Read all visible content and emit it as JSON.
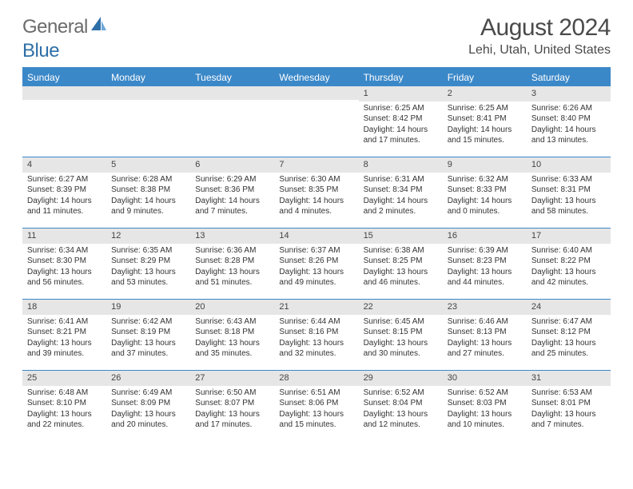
{
  "logo": {
    "word1": "General",
    "word2": "Blue",
    "word1_color": "#6b6b6b",
    "word2_color": "#2f6fa8"
  },
  "title": "August 2024",
  "location": "Lehi, Utah, United States",
  "colors": {
    "header_bg": "#3b88c8",
    "header_text": "#ffffff",
    "daynum_bg": "#e6e6e6",
    "border": "#3b88c8",
    "body_text": "#333333"
  },
  "weekdays": [
    "Sunday",
    "Monday",
    "Tuesday",
    "Wednesday",
    "Thursday",
    "Friday",
    "Saturday"
  ],
  "weeks": [
    [
      null,
      null,
      null,
      null,
      {
        "n": "1",
        "sr": "6:25 AM",
        "ss": "8:42 PM",
        "dl": "14 hours and 17 minutes."
      },
      {
        "n": "2",
        "sr": "6:25 AM",
        "ss": "8:41 PM",
        "dl": "14 hours and 15 minutes."
      },
      {
        "n": "3",
        "sr": "6:26 AM",
        "ss": "8:40 PM",
        "dl": "14 hours and 13 minutes."
      }
    ],
    [
      {
        "n": "4",
        "sr": "6:27 AM",
        "ss": "8:39 PM",
        "dl": "14 hours and 11 minutes."
      },
      {
        "n": "5",
        "sr": "6:28 AM",
        "ss": "8:38 PM",
        "dl": "14 hours and 9 minutes."
      },
      {
        "n": "6",
        "sr": "6:29 AM",
        "ss": "8:36 PM",
        "dl": "14 hours and 7 minutes."
      },
      {
        "n": "7",
        "sr": "6:30 AM",
        "ss": "8:35 PM",
        "dl": "14 hours and 4 minutes."
      },
      {
        "n": "8",
        "sr": "6:31 AM",
        "ss": "8:34 PM",
        "dl": "14 hours and 2 minutes."
      },
      {
        "n": "9",
        "sr": "6:32 AM",
        "ss": "8:33 PM",
        "dl": "14 hours and 0 minutes."
      },
      {
        "n": "10",
        "sr": "6:33 AM",
        "ss": "8:31 PM",
        "dl": "13 hours and 58 minutes."
      }
    ],
    [
      {
        "n": "11",
        "sr": "6:34 AM",
        "ss": "8:30 PM",
        "dl": "13 hours and 56 minutes."
      },
      {
        "n": "12",
        "sr": "6:35 AM",
        "ss": "8:29 PM",
        "dl": "13 hours and 53 minutes."
      },
      {
        "n": "13",
        "sr": "6:36 AM",
        "ss": "8:28 PM",
        "dl": "13 hours and 51 minutes."
      },
      {
        "n": "14",
        "sr": "6:37 AM",
        "ss": "8:26 PM",
        "dl": "13 hours and 49 minutes."
      },
      {
        "n": "15",
        "sr": "6:38 AM",
        "ss": "8:25 PM",
        "dl": "13 hours and 46 minutes."
      },
      {
        "n": "16",
        "sr": "6:39 AM",
        "ss": "8:23 PM",
        "dl": "13 hours and 44 minutes."
      },
      {
        "n": "17",
        "sr": "6:40 AM",
        "ss": "8:22 PM",
        "dl": "13 hours and 42 minutes."
      }
    ],
    [
      {
        "n": "18",
        "sr": "6:41 AM",
        "ss": "8:21 PM",
        "dl": "13 hours and 39 minutes."
      },
      {
        "n": "19",
        "sr": "6:42 AM",
        "ss": "8:19 PM",
        "dl": "13 hours and 37 minutes."
      },
      {
        "n": "20",
        "sr": "6:43 AM",
        "ss": "8:18 PM",
        "dl": "13 hours and 35 minutes."
      },
      {
        "n": "21",
        "sr": "6:44 AM",
        "ss": "8:16 PM",
        "dl": "13 hours and 32 minutes."
      },
      {
        "n": "22",
        "sr": "6:45 AM",
        "ss": "8:15 PM",
        "dl": "13 hours and 30 minutes."
      },
      {
        "n": "23",
        "sr": "6:46 AM",
        "ss": "8:13 PM",
        "dl": "13 hours and 27 minutes."
      },
      {
        "n": "24",
        "sr": "6:47 AM",
        "ss": "8:12 PM",
        "dl": "13 hours and 25 minutes."
      }
    ],
    [
      {
        "n": "25",
        "sr": "6:48 AM",
        "ss": "8:10 PM",
        "dl": "13 hours and 22 minutes."
      },
      {
        "n": "26",
        "sr": "6:49 AM",
        "ss": "8:09 PM",
        "dl": "13 hours and 20 minutes."
      },
      {
        "n": "27",
        "sr": "6:50 AM",
        "ss": "8:07 PM",
        "dl": "13 hours and 17 minutes."
      },
      {
        "n": "28",
        "sr": "6:51 AM",
        "ss": "8:06 PM",
        "dl": "13 hours and 15 minutes."
      },
      {
        "n": "29",
        "sr": "6:52 AM",
        "ss": "8:04 PM",
        "dl": "13 hours and 12 minutes."
      },
      {
        "n": "30",
        "sr": "6:52 AM",
        "ss": "8:03 PM",
        "dl": "13 hours and 10 minutes."
      },
      {
        "n": "31",
        "sr": "6:53 AM",
        "ss": "8:01 PM",
        "dl": "13 hours and 7 minutes."
      }
    ]
  ],
  "labels": {
    "sunrise": "Sunrise:",
    "sunset": "Sunset:",
    "daylight": "Daylight:"
  }
}
